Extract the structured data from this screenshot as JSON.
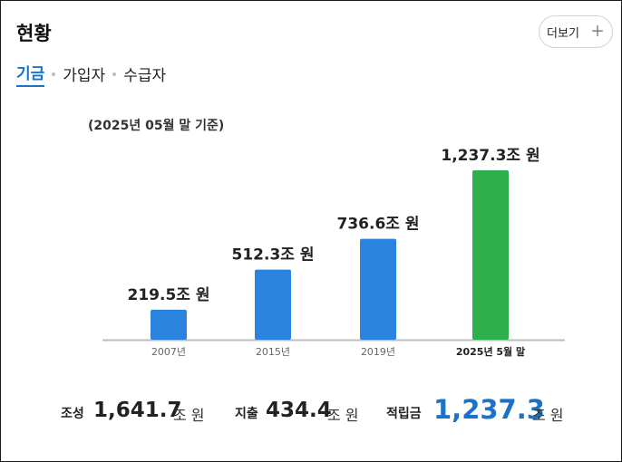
{
  "header": {
    "title": "현황",
    "more_label": "더보기",
    "more_icon": "plus-icon"
  },
  "tabs": [
    {
      "label": "기금",
      "active": true
    },
    {
      "label": "가입자",
      "active": false
    },
    {
      "label": "수급자",
      "active": false
    }
  ],
  "chart_data": {
    "type": "bar",
    "basis_note": "(2025년 05월 말 기준)",
    "categories": [
      "2007년",
      "2015년",
      "2019년",
      "2025년 5월 말"
    ],
    "values": [
      219.5,
      512.3,
      736.6,
      1237.3
    ],
    "value_labels": [
      "219.5조 원",
      "512.3조 원",
      "736.6조 원",
      "1,237.3조 원"
    ],
    "unit": "조 원",
    "ylim": [
      0,
      1300
    ],
    "grid": false,
    "colors": [
      "#2a84de",
      "#2a84de",
      "#2a84de",
      "#2db04b"
    ]
  },
  "summary": {
    "formation": {
      "label": "조성",
      "value": "1,641.7",
      "unit": "조 원"
    },
    "expenditure": {
      "label": "지출",
      "value": "434.4",
      "unit": "조 원"
    },
    "reserve": {
      "label": "적립금",
      "value": "1,237.3",
      "unit": "조 원",
      "color": "#1a73c8"
    }
  }
}
